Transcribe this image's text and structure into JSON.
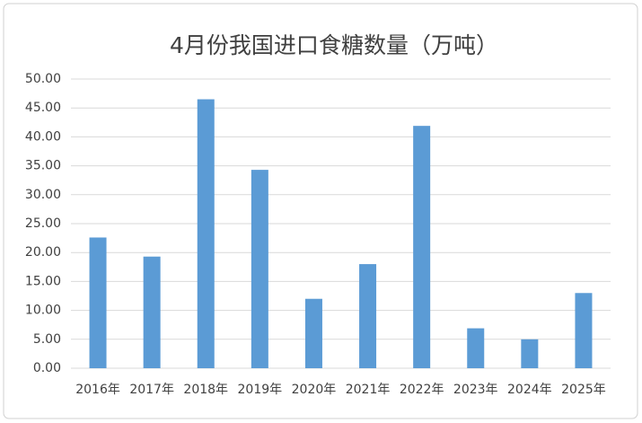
{
  "chart_data": {
    "type": "bar",
    "title": "4月份我国进口食糖数量（万吨）",
    "categories": [
      "2016年",
      "2017年",
      "2018年",
      "2019年",
      "2020年",
      "2021年",
      "2022年",
      "2023年",
      "2024年",
      "2025年"
    ],
    "values": [
      22.6,
      19.3,
      46.5,
      34.3,
      12.0,
      18.0,
      41.9,
      6.9,
      5.0,
      13.0
    ],
    "color": "#5b9bd5",
    "ylim": [
      0,
      50
    ],
    "yticks": [
      {
        "value": 0,
        "label": "0.00"
      },
      {
        "value": 5,
        "label": "5.00"
      },
      {
        "value": 10,
        "label": "10.00"
      },
      {
        "value": 15,
        "label": "15.00"
      },
      {
        "value": 20,
        "label": "20.00"
      },
      {
        "value": 25,
        "label": "25.00"
      },
      {
        "value": 30,
        "label": "30.00"
      },
      {
        "value": 35,
        "label": "35.00"
      },
      {
        "value": 40,
        "label": "40.00"
      },
      {
        "value": 45,
        "label": "45.00"
      },
      {
        "value": 50,
        "label": "50.00"
      }
    ],
    "grid": true
  }
}
